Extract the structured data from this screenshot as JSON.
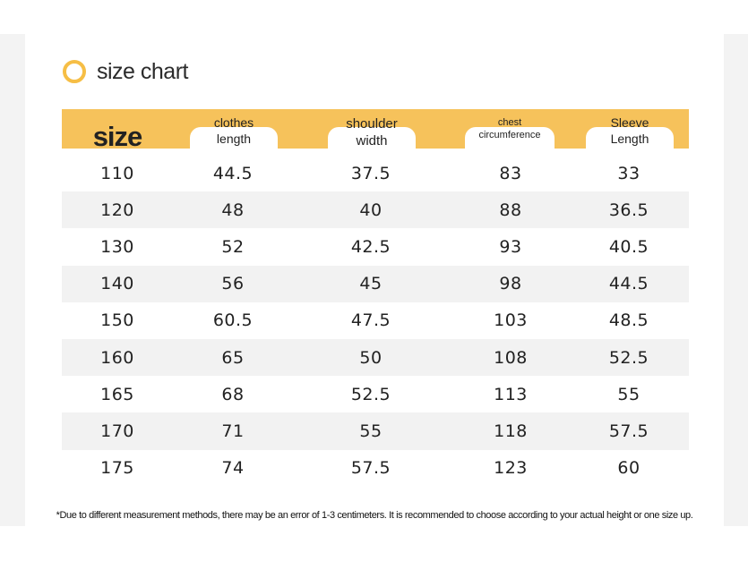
{
  "title": "size chart",
  "columns": {
    "size": "size",
    "clothes_length": [
      "clothes",
      "length"
    ],
    "shoulder_width": [
      "shoulder",
      "width"
    ],
    "chest_circumference": [
      "chest",
      "circumference"
    ],
    "sleeve_length": [
      "Sleeve",
      "Length"
    ]
  },
  "rows": [
    [
      "110",
      "44.5",
      "37.5",
      "83",
      "33"
    ],
    [
      "120",
      "48",
      "40",
      "88",
      "36.5"
    ],
    [
      "130",
      "52",
      "42.5",
      "93",
      "40.5"
    ],
    [
      "140",
      "56",
      "45",
      "98",
      "44.5"
    ],
    [
      "150",
      "60.5",
      "47.5",
      "103",
      "48.5"
    ],
    [
      "160",
      "65",
      "50",
      "108",
      "52.5"
    ],
    [
      "165",
      "68",
      "52.5",
      "113",
      "55"
    ],
    [
      "170",
      "71",
      "55",
      "118",
      "57.5"
    ],
    [
      "175",
      "74",
      "57.5",
      "123",
      "60"
    ]
  ],
  "note": "*Due to different measurement methods, there may be an error of 1-3 centimeters. It is recommended to choose according to your actual height or one size up.",
  "colors": {
    "accent": "#f6c25b",
    "ring": "#f6be45",
    "stripe": "#f2f2f2"
  }
}
